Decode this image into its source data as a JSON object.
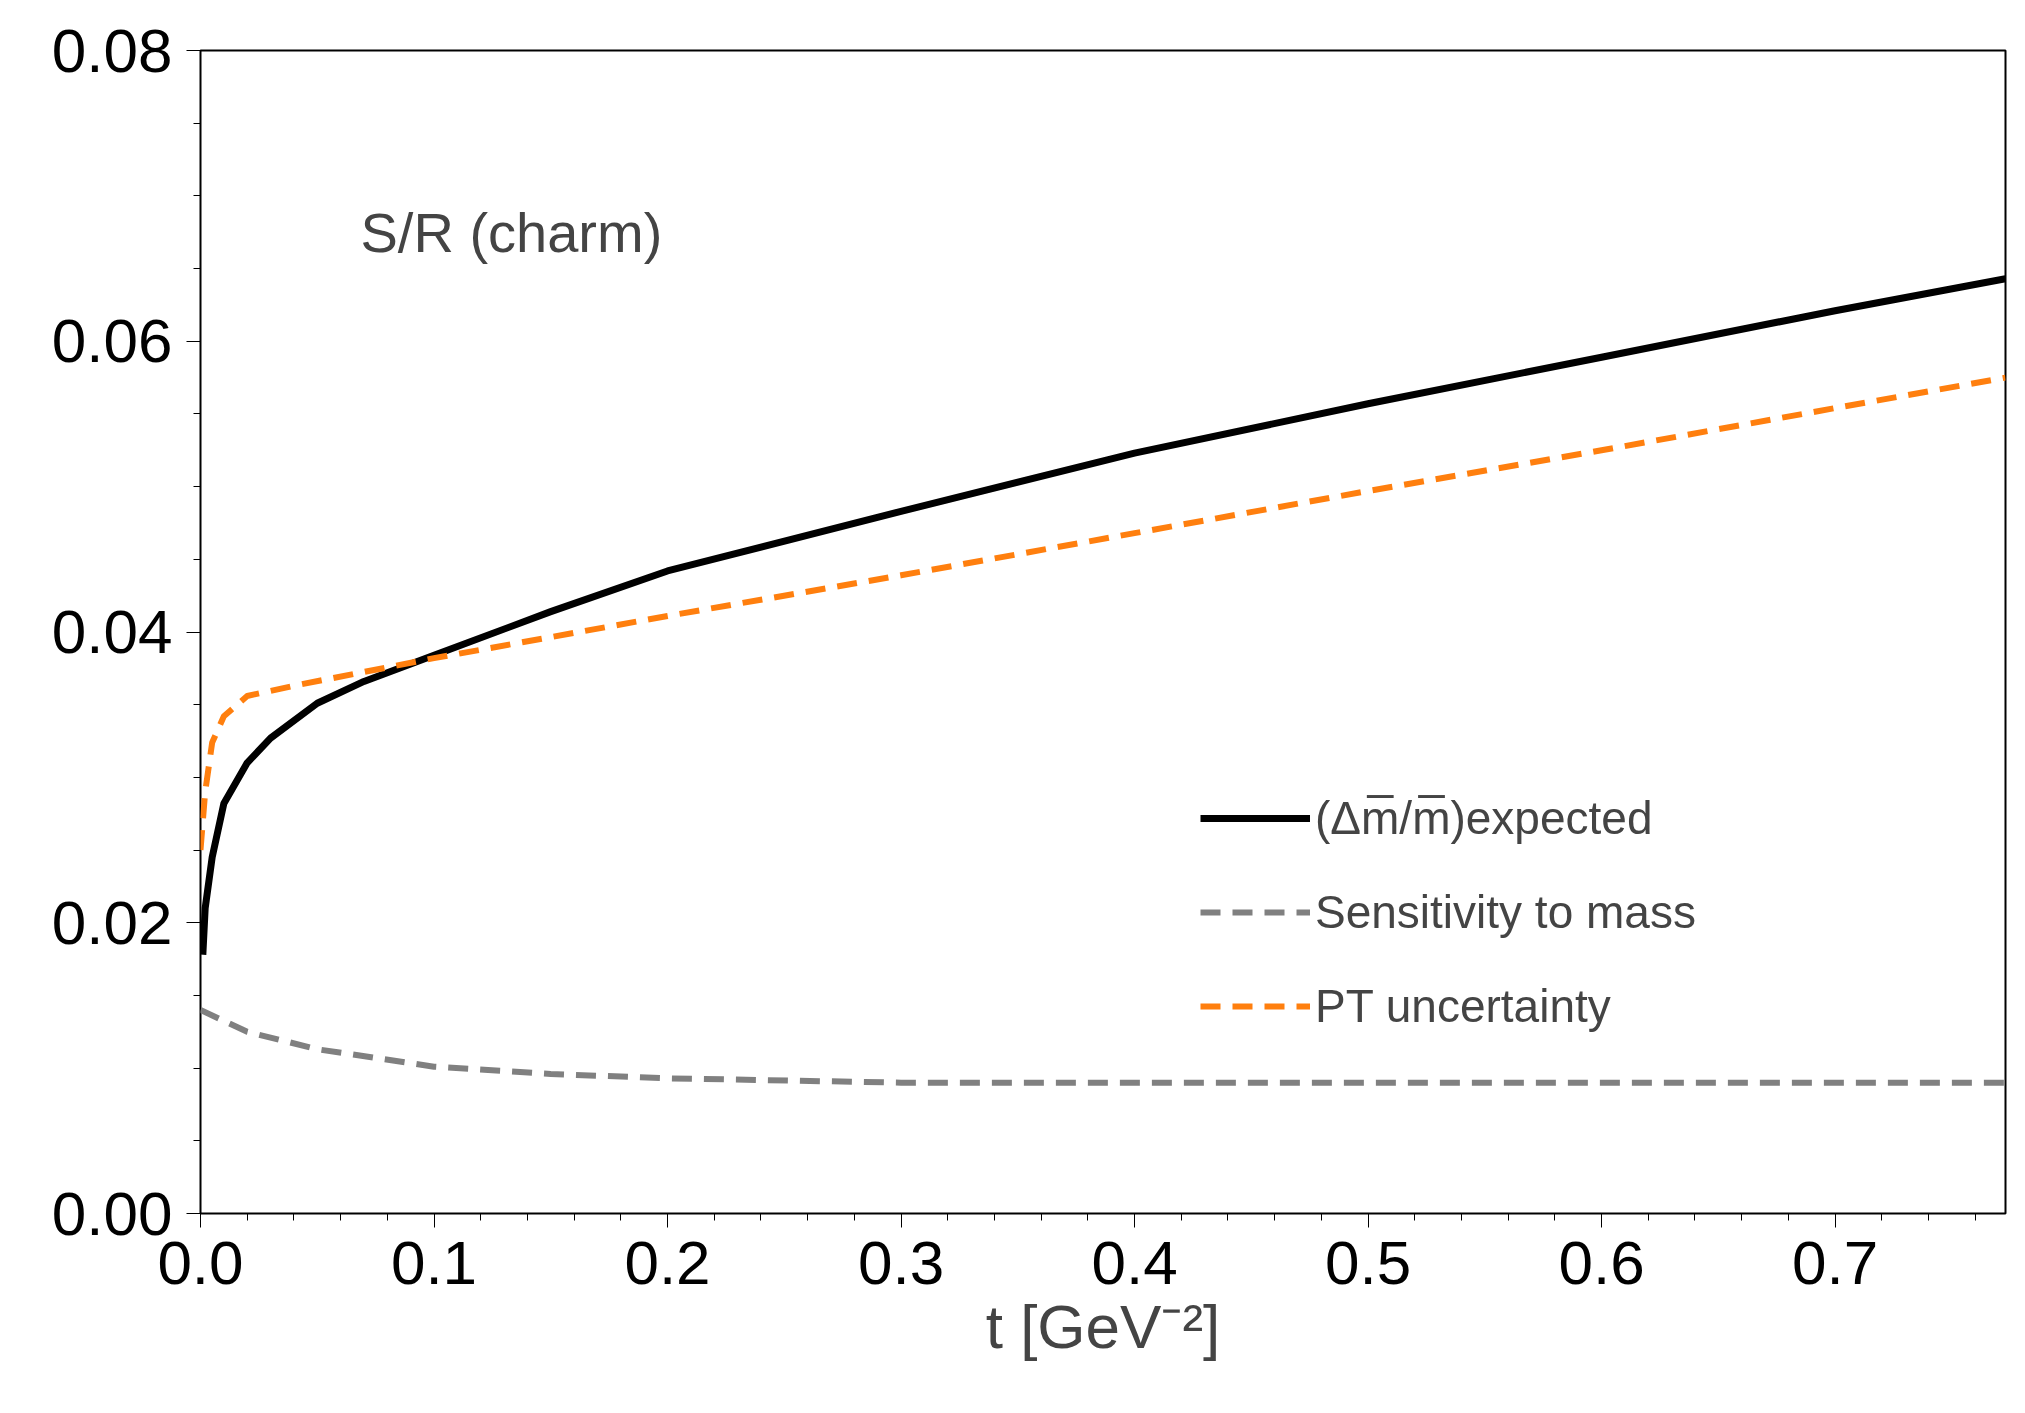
{
  "chart_data": {
    "type": "line",
    "xlabel": "t [GeV⁻²]",
    "annotations": [
      "S/R (charm)"
    ],
    "xlim": [
      0,
      0.773
    ],
    "ylim": [
      0,
      0.08
    ],
    "xticks": [
      {
        "value": 0,
        "label": "0.0"
      },
      0.1,
      0.2,
      0.3,
      0.4,
      0.5,
      0.6,
      0.7
    ],
    "yticks": [
      {
        "value": 0,
        "label": "0.00"
      },
      {
        "value": 0.02,
        "label": "0.02"
      },
      {
        "value": 0.04,
        "label": "0.04"
      },
      {
        "value": 0.06,
        "label": "0.06"
      },
      {
        "value": 0.08,
        "label": "0.08"
      }
    ],
    "grid": false,
    "legend": "right",
    "marker": "none",
    "series": [
      {
        "name": "(Δm̅/m̅)expected",
        "color": "#000000",
        "line_style": "solid",
        "x": [
          0.001,
          0.002,
          0.005,
          0.01,
          0.02,
          0.03,
          0.05,
          0.07,
          0.1,
          0.15,
          0.2,
          0.3,
          0.4,
          0.5,
          0.6,
          0.7,
          0.773
        ],
        "values": [
          0.0178,
          0.021,
          0.0245,
          0.0282,
          0.031,
          0.0327,
          0.0351,
          0.0366,
          0.0384,
          0.0414,
          0.0442,
          0.0483,
          0.0523,
          0.0557,
          0.0589,
          0.0621,
          0.0643
        ]
      },
      {
        "name": "Sensitivity to mass",
        "color": "#808080",
        "line_style": "dashed",
        "x": [
          0,
          0.02,
          0.05,
          0.1,
          0.15,
          0.2,
          0.3,
          0.4,
          0.5,
          0.6,
          0.7,
          0.773
        ],
        "values": [
          0.014,
          0.0125,
          0.0113,
          0.0101,
          0.0096,
          0.0093,
          0.009,
          0.009,
          0.009,
          0.009,
          0.009,
          0.009
        ]
      },
      {
        "name": "PT uncertainty",
        "color": "#ff7f0e",
        "line_style": "dashed",
        "x": [
          0,
          0.002,
          0.005,
          0.01,
          0.02,
          0.04,
          0.1,
          0.2,
          0.3,
          0.4,
          0.5,
          0.6,
          0.7,
          0.773
        ],
        "values": [
          0.025,
          0.029,
          0.0324,
          0.0342,
          0.0356,
          0.0363,
          0.0382,
          0.0411,
          0.0439,
          0.0468,
          0.0497,
          0.0525,
          0.0554,
          0.0575
        ]
      }
    ]
  }
}
